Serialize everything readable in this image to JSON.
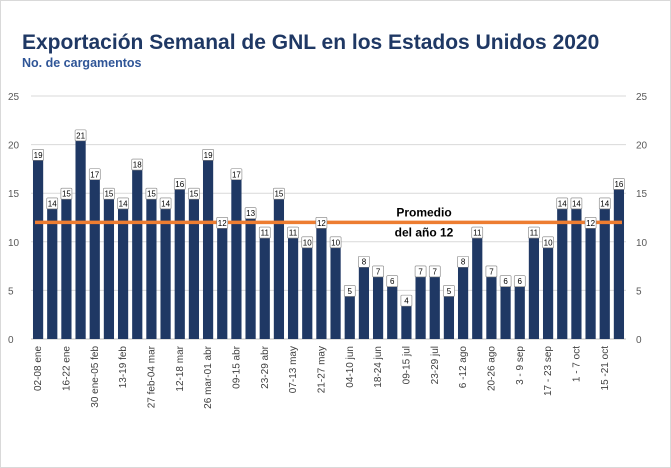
{
  "title": "Exportación Semanal de GNL en los Estados Unidos 2020",
  "subtitle": "No. de cargamentos",
  "chart_data": {
    "type": "bar",
    "title": "Exportación Semanal de GNL en los Estados Unidos 2020",
    "ylabel": "No. de cargamentos",
    "ylim": [
      0,
      25
    ],
    "yticks": [
      0,
      5,
      10,
      15,
      20,
      25
    ],
    "secondary_yticks": [
      0,
      5,
      10,
      15,
      20,
      25
    ],
    "grid": true,
    "bar_color": "#1f3864",
    "average_line_color": "#ed7d31",
    "average": 12,
    "average_label_line1": "Promedio",
    "average_label_line2": "del año 12",
    "categories": [
      "02-08 ene",
      "",
      "16-22 ene",
      "",
      "30 ene-05 feb",
      "",
      "13-19 feb",
      "",
      "27 feb-04 mar",
      "",
      "12-18 mar",
      "",
      "26 mar-01 abr",
      "",
      "09-15 abr",
      "",
      "23-29 abr",
      "",
      "07-13 may",
      "",
      "21-27 may",
      "",
      "04-10 jun",
      "",
      "18-24 jun",
      "",
      "09-15 jul",
      "",
      "23-29 jul",
      "",
      "6 -12 ago",
      "",
      "20-26 ago",
      "",
      "3 - 9 sep",
      "",
      "17 - 23 sep",
      "",
      "1 - 7 oct",
      "",
      "15 -21 oct",
      ""
    ],
    "values": [
      19,
      14,
      15,
      21,
      17,
      15,
      14,
      18,
      15,
      14,
      16,
      15,
      19,
      12,
      17,
      13,
      11,
      15,
      11,
      10,
      12,
      10,
      5,
      8,
      7,
      6,
      4,
      7,
      7,
      5,
      8,
      11,
      7,
      6,
      6,
      11,
      10,
      14,
      14,
      12,
      14,
      16
    ]
  }
}
